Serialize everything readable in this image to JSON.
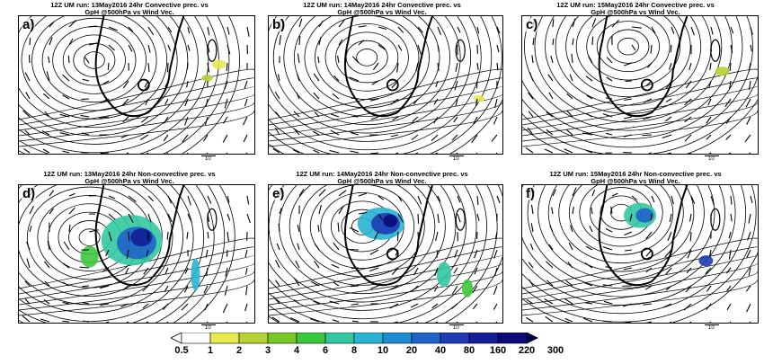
{
  "panels": [
    {
      "title": "12Z UM run: 13May2016 24hr Convective prec. vs\nGpH @500hPa vs Wind Vec.",
      "label": "a)",
      "ref": "10"
    },
    {
      "title": "12Z UM run: 14May2016 24hr Convective prec. vs\nGpH @500hPa vs Wind Vec.",
      "label": "b)",
      "ref": "10"
    },
    {
      "title": "12Z UM run: 15May2016 24hr Convective prec. vs\nGpH @500hPa vs Wind Vec.",
      "label": "c)",
      "ref": "10"
    },
    {
      "title": "12Z UM run: 13May2016 24hr Non-convective prec. vs\nGpH @500hPa vs Wind Vec.",
      "label": "d)",
      "ref": "10"
    },
    {
      "title": "12Z UM run: 14May2016 24hr Non-convective prec. vs\nGpH @500hPa vs Wind Vec.",
      "label": "e)",
      "ref": "10"
    },
    {
      "title": "12Z UM run: 15May2016 24hr Non-convective prec. vs\nGpH @500hPa vs Wind Vec.",
      "label": "f)",
      "ref": "10"
    }
  ],
  "colorbar": {
    "labels": [
      "0.5",
      "1",
      "2",
      "3",
      "4",
      "6",
      "8",
      "10",
      "20",
      "40",
      "80",
      "160",
      "220",
      "300"
    ],
    "colors": [
      "#ffffff",
      "#e8e850",
      "#b4d232",
      "#78c828",
      "#3cc83c",
      "#32c8a0",
      "#28b4d2",
      "#1e8cd2",
      "#1e64c8",
      "#1e3cb4",
      "#141e96",
      "#0a0a78",
      "#000050"
    ]
  }
}
